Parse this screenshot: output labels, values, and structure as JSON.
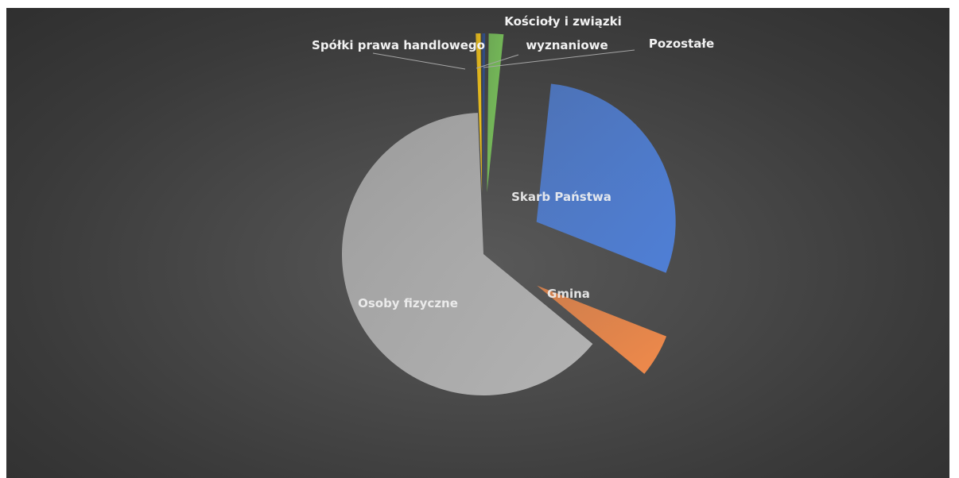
{
  "chart_data": {
    "type": "pie",
    "title": "",
    "start_angle_deg": 0,
    "explode_deg": 6,
    "categories": [
      "Skarb Państwa",
      "Gmina",
      "Osoby fizyczne",
      "Spółki prawa handlowego",
      "Kościoły i związki wyznaniowe",
      "Pozostałe"
    ],
    "values": [
      29.3,
      5.0,
      63.4,
      0.5,
      0.3,
      1.5
    ],
    "colors": [
      "#4f7fd6",
      "#f08a4b",
      "#b3b3b3",
      "#f5c518",
      "#2e4f8f",
      "#79c45a"
    ],
    "label_position": [
      "inside",
      "inside",
      "inside",
      "outside",
      "outside",
      "outside"
    ]
  }
}
